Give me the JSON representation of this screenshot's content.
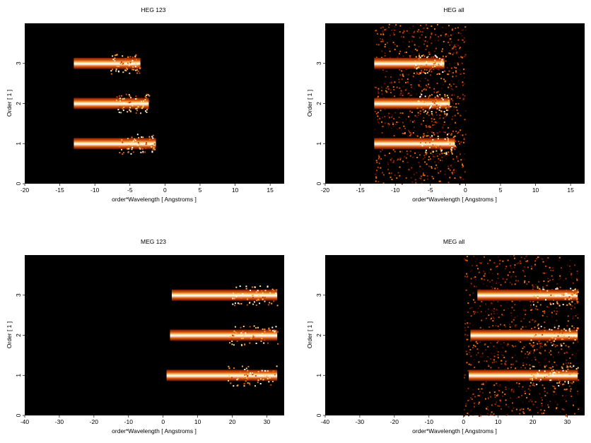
{
  "chart_data": [
    {
      "type": "heatmap",
      "title": "HEG 123",
      "xlabel": "order*Wavelength [ Angstroms ]",
      "ylabel": "Order [ 1 ]",
      "xlim": [
        -20,
        17
      ],
      "ylim": [
        0,
        4
      ],
      "xticks": [
        -20,
        -15,
        -10,
        -5,
        0,
        5,
        10,
        15
      ],
      "yticks": [
        0,
        1,
        2,
        3
      ],
      "colormap": [
        "#000000",
        "#5a0a00",
        "#b03000",
        "#e87010",
        "#ffd070",
        "#ffffff"
      ],
      "stripes": [
        {
          "order": 1,
          "x": [
            -13,
            -1.3
          ],
          "intensity": "high"
        },
        {
          "order": 2,
          "x": [
            -13,
            -2.3
          ],
          "intensity": "high"
        },
        {
          "order": 3,
          "x": [
            -13,
            -3.5
          ],
          "intensity": "high"
        }
      ]
    },
    {
      "type": "heatmap",
      "title": "HEG all",
      "xlabel": "order*Wavelength [ Angstroms ]",
      "ylabel": "Order [ 1 ]",
      "xlim": [
        -20,
        17
      ],
      "ylim": [
        0,
        4
      ],
      "xticks": [
        -20,
        -15,
        -10,
        -5,
        0,
        5,
        10,
        15
      ],
      "yticks": [
        0,
        1,
        2,
        3
      ],
      "colormap": [
        "#000000",
        "#5a0a00",
        "#b03000",
        "#e87010",
        "#ffd070",
        "#ffffff"
      ],
      "stripes": [
        {
          "order": 1,
          "x": [
            -13,
            -1.5
          ],
          "intensity": "high"
        },
        {
          "order": 2,
          "x": [
            -13,
            -2.2
          ],
          "intensity": "high"
        },
        {
          "order": 3,
          "x": [
            -13,
            -3.0
          ],
          "intensity": "high"
        }
      ],
      "background_region": {
        "x": [
          -13,
          0
        ],
        "note": "speckled emission across all orders"
      }
    },
    {
      "type": "heatmap",
      "title": "MEG 123",
      "xlabel": "order*Wavelength [ Angstroms ]",
      "ylabel": "Order [ 1 ]",
      "xlim": [
        -40,
        35
      ],
      "ylim": [
        0,
        4
      ],
      "xticks": [
        -40,
        -30,
        -20,
        -10,
        0,
        10,
        20,
        30
      ],
      "yticks": [
        0,
        1,
        2,
        3
      ],
      "colormap": [
        "#000000",
        "#5a0a00",
        "#b03000",
        "#e87010",
        "#ffd070",
        "#ffffff"
      ],
      "stripes": [
        {
          "order": 1,
          "x": [
            1,
            33
          ],
          "intensity": "high"
        },
        {
          "order": 2,
          "x": [
            2,
            33
          ],
          "intensity": "high"
        },
        {
          "order": 3,
          "x": [
            2.5,
            33
          ],
          "intensity": "high"
        }
      ]
    },
    {
      "type": "heatmap",
      "title": "MEG all",
      "xlabel": "order*Wavelength [ Angstroms ]",
      "ylabel": "Order [ 1 ]",
      "xlim": [
        -40,
        35
      ],
      "ylim": [
        0,
        4
      ],
      "xticks": [
        -40,
        -30,
        -20,
        -10,
        0,
        10,
        20,
        30
      ],
      "yticks": [
        0,
        1,
        2,
        3
      ],
      "colormap": [
        "#000000",
        "#5a0a00",
        "#b03000",
        "#e87010",
        "#ffd070",
        "#ffffff"
      ],
      "stripes": [
        {
          "order": 1,
          "x": [
            1.5,
            33
          ],
          "intensity": "high"
        },
        {
          "order": 2,
          "x": [
            2,
            33
          ],
          "intensity": "high"
        },
        {
          "order": 3,
          "x": [
            4,
            33
          ],
          "intensity": "high"
        }
      ],
      "background_region": {
        "x": [
          0,
          33
        ],
        "note": "speckled emission across all orders"
      }
    }
  ]
}
